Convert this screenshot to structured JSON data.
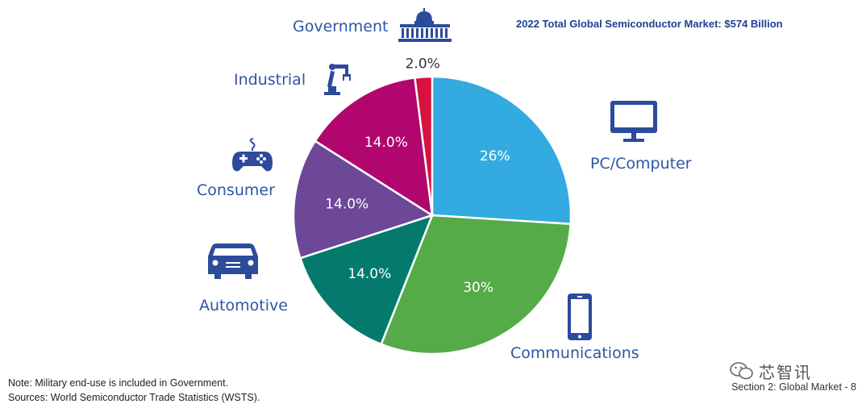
{
  "colors": {
    "pc": "#33abe0",
    "communications": "#55ab48",
    "automotive": "#047a6c",
    "consumer": "#6c4897",
    "industrial": "#b0066e",
    "government": "#d8123e",
    "icon": "#2c4b9b"
  },
  "chart_data": {
    "type": "pie",
    "title": "2022 Total Global Semiconductor Market: $574 Billion",
    "slices": [
      {
        "key": "pc",
        "name": "PC/Computer",
        "value": 26,
        "label": "26%",
        "icon": "monitor-icon"
      },
      {
        "key": "communications",
        "name": "Communications",
        "value": 30,
        "label": "30%",
        "icon": "smartphone-icon"
      },
      {
        "key": "automotive",
        "name": "Automotive",
        "value": 14,
        "label": "14.0%",
        "icon": "car-icon"
      },
      {
        "key": "consumer",
        "name": "Consumer",
        "value": 14,
        "label": "14.0%",
        "icon": "gamepad-icon"
      },
      {
        "key": "industrial",
        "name": "Industrial",
        "value": 14,
        "label": "14.0%",
        "icon": "robot-arm-icon"
      },
      {
        "key": "government",
        "name": "Government",
        "value": 2,
        "label": "2.0%",
        "icon": "capitol-building-icon"
      }
    ]
  },
  "notes": {
    "note": "Note: Military end-use is included in Government.",
    "sources": "Sources: World Semiconductor Trade Statistics (WSTS)."
  },
  "footer": "Section 2: Global Market - 8",
  "watermark": "芯智讯"
}
